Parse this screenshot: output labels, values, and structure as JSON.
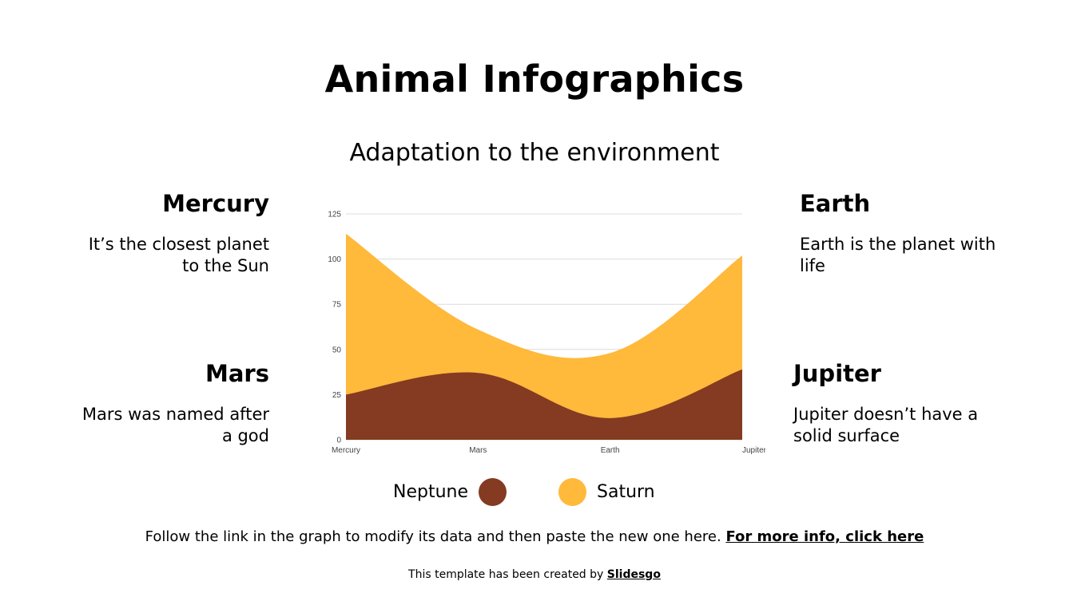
{
  "page": {
    "title": "Animal Infographics",
    "subtitle": "Adaptation to the environment"
  },
  "cards": {
    "mercury": {
      "heading": "Mercury",
      "text": "It’s the closest planet\nto the Sun"
    },
    "mars": {
      "heading": "Mars",
      "text": "Mars was named after\na god"
    },
    "earth": {
      "heading": "Earth",
      "text": "Earth is the planet with\nlife"
    },
    "jupiter": {
      "heading": "Jupiter",
      "text": "Jupiter doesn’t have a\nsolid surface"
    }
  },
  "chart_data": {
    "type": "area",
    "stacked": true,
    "smooth": true,
    "title": "",
    "xlabel": "",
    "ylabel": "",
    "categories": [
      "Mercury",
      "Mars",
      "Earth",
      "Jupiter"
    ],
    "ylim": [
      0,
      125
    ],
    "yticks": [
      0,
      25,
      50,
      75,
      100,
      125
    ],
    "grid": true,
    "legend_position": "bottom",
    "series": [
      {
        "name": "Neptune",
        "values": [
          25,
          37,
          12,
          39
        ],
        "color": "#843b21"
      },
      {
        "name": "Saturn",
        "values": [
          89,
          24,
          36,
          63
        ],
        "color": "#ffb93b"
      }
    ]
  },
  "legend": {
    "neptune": {
      "label": "Neptune",
      "color": "#843b21"
    },
    "saturn": {
      "label": "Saturn",
      "color": "#ffb93b"
    }
  },
  "footer": {
    "note": "Follow the link in the graph to modify its data and then paste the new one here.",
    "link": "For more info, click here",
    "credit": "This template has been created by",
    "credit_link": "Slidesgo"
  }
}
